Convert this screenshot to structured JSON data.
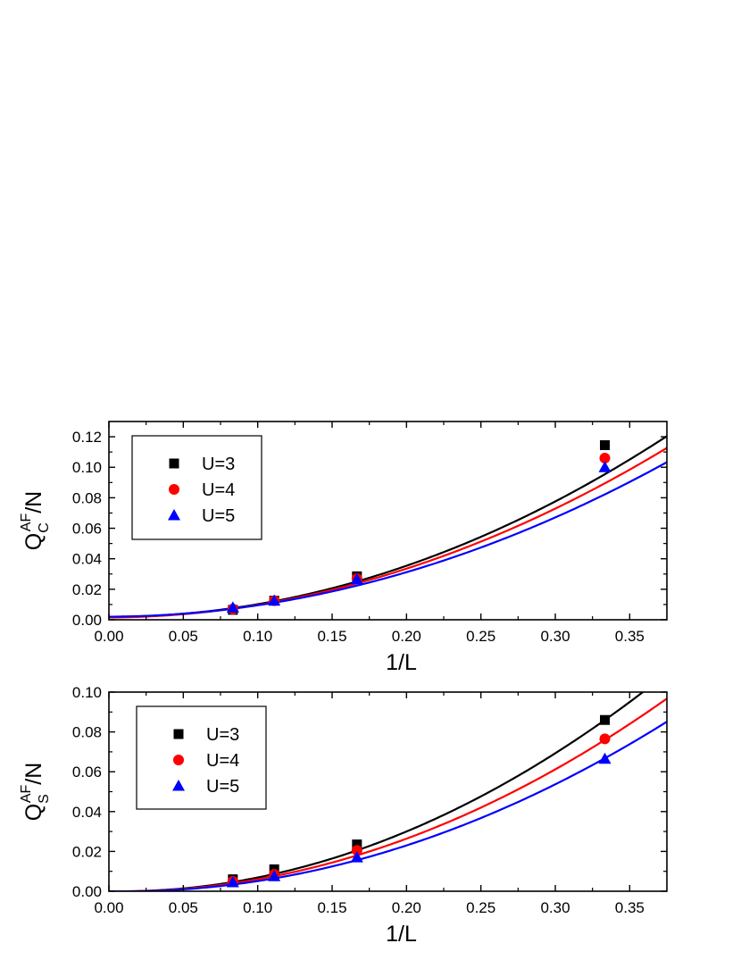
{
  "chart_data": [
    {
      "type": "scatter",
      "xlabel": "1/L",
      "ylabel": "Q_C^AF/N",
      "ylabel_parts": {
        "base": "Q",
        "sub": "C",
        "sup": "AF",
        "rest": "/N"
      },
      "xlim": [
        0.0,
        0.375
      ],
      "ylim": [
        0.0,
        0.13
      ],
      "xticks": [
        "0.00",
        "0.05",
        "0.10",
        "0.15",
        "0.20",
        "0.25",
        "0.30",
        "0.35"
      ],
      "yticks": [
        "0.00",
        "0.02",
        "0.04",
        "0.06",
        "0.08",
        "0.10",
        "0.12"
      ],
      "grid": false,
      "legend_position": "top-left",
      "series": [
        {
          "name": "U=3",
          "marker": "square",
          "color": "#000000",
          "x": [
            0.0833,
            0.1111,
            0.1667,
            0.3333
          ],
          "y": [
            0.0065,
            0.0125,
            0.0285,
            0.1145
          ],
          "fit": [
            0.002,
            -0.003,
            0.85
          ]
        },
        {
          "name": "U=4",
          "marker": "circle",
          "color": "#ff0000",
          "x": [
            0.0833,
            0.1111,
            0.1667,
            0.3333
          ],
          "y": [
            0.007,
            0.0125,
            0.027,
            0.106
          ],
          "fit": [
            0.0015,
            0.004,
            0.78
          ]
        },
        {
          "name": "U=5",
          "marker": "triangle",
          "color": "#0000ff",
          "x": [
            0.0833,
            0.1111,
            0.1667,
            0.3333
          ],
          "y": [
            0.008,
            0.0125,
            0.0265,
            0.1
          ],
          "fit": [
            0.002,
            0.004,
            0.71
          ]
        }
      ]
    },
    {
      "type": "scatter",
      "xlabel": "1/L",
      "ylabel": "Q_S^AF/N",
      "ylabel_parts": {
        "base": "Q",
        "sub": "S",
        "sup": "AF",
        "rest": "/N"
      },
      "xlim": [
        0.0,
        0.375
      ],
      "ylim": [
        0.0,
        0.1
      ],
      "xticks": [
        "0.00",
        "0.05",
        "0.10",
        "0.15",
        "0.20",
        "0.25",
        "0.30",
        "0.35"
      ],
      "yticks": [
        "0.00",
        "0.02",
        "0.04",
        "0.06",
        "0.08",
        "0.10"
      ],
      "grid": false,
      "legend_position": "top-left",
      "series": [
        {
          "name": "U=3",
          "marker": "square",
          "color": "#000000",
          "x": [
            0.0833,
            0.1111,
            0.1667,
            0.3333
          ],
          "y": [
            0.006,
            0.011,
            0.0235,
            0.086
          ],
          "fit": [
            0.0,
            -0.012,
            0.81
          ]
        },
        {
          "name": "U=4",
          "marker": "circle",
          "color": "#ff0000",
          "x": [
            0.0833,
            0.1111,
            0.1667,
            0.3333
          ],
          "y": [
            0.005,
            0.0085,
            0.0205,
            0.0765
          ],
          "fit": [
            0.0,
            -0.012,
            0.72
          ]
        },
        {
          "name": "U=5",
          "marker": "triangle",
          "color": "#0000ff",
          "x": [
            0.0833,
            0.1111,
            0.1667,
            0.3333
          ],
          "y": [
            0.0045,
            0.0075,
            0.017,
            0.0665
          ],
          "fit": [
            0.0,
            -0.013,
            0.64
          ]
        }
      ]
    }
  ]
}
